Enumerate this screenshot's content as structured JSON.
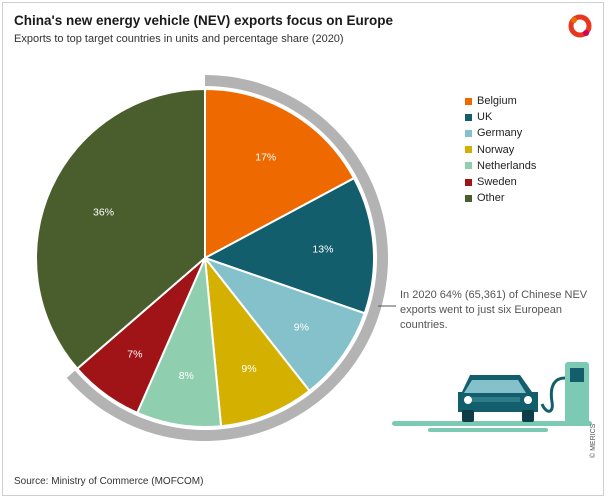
{
  "header": {
    "title": "China's new energy vehicle (NEV) exports focus on Europe",
    "subtitle": "Exports to top target countries in units and percentage share (2020)"
  },
  "annotation": "In 2020 64% (65,361) of Chinese NEV exports went to just six European countries.",
  "source": "Source: Ministry of Commerce (MOFCOM)",
  "credit": "© MERICS",
  "colors": {
    "Belgium": "#ee6a00",
    "UK": "#135e6c",
    "Germany": "#84c1cb",
    "Norway": "#d4b100",
    "Netherlands": "#8fcfb0",
    "Sweden": "#a01418",
    "Other": "#4a5d2c",
    "ring": "#b3b3b3",
    "charger": "#7cc9b4",
    "car": "#1a5c68"
  },
  "icons": [
    "merics-logo-icon",
    "electric-car-charging-icon"
  ],
  "chart_data": {
    "type": "pie",
    "title": "China's new energy vehicle (NEV) exports focus on Europe",
    "subtitle": "Exports to top target countries in units and percentage share (2020)",
    "unit": "%",
    "categories": [
      "Belgium",
      "UK",
      "Germany",
      "Norway",
      "Netherlands",
      "Sweden",
      "Other"
    ],
    "values": [
      17,
      13,
      9,
      9,
      8,
      7,
      36
    ],
    "labels": [
      "17%",
      "13%",
      "9%",
      "9%",
      "8%",
      "7%",
      "36%"
    ],
    "highlight": {
      "categories": [
        "Belgium",
        "UK",
        "Germany",
        "Norway",
        "Netherlands",
        "Sweden"
      ],
      "share": 64,
      "units": 65361
    },
    "legend_position": "right"
  }
}
